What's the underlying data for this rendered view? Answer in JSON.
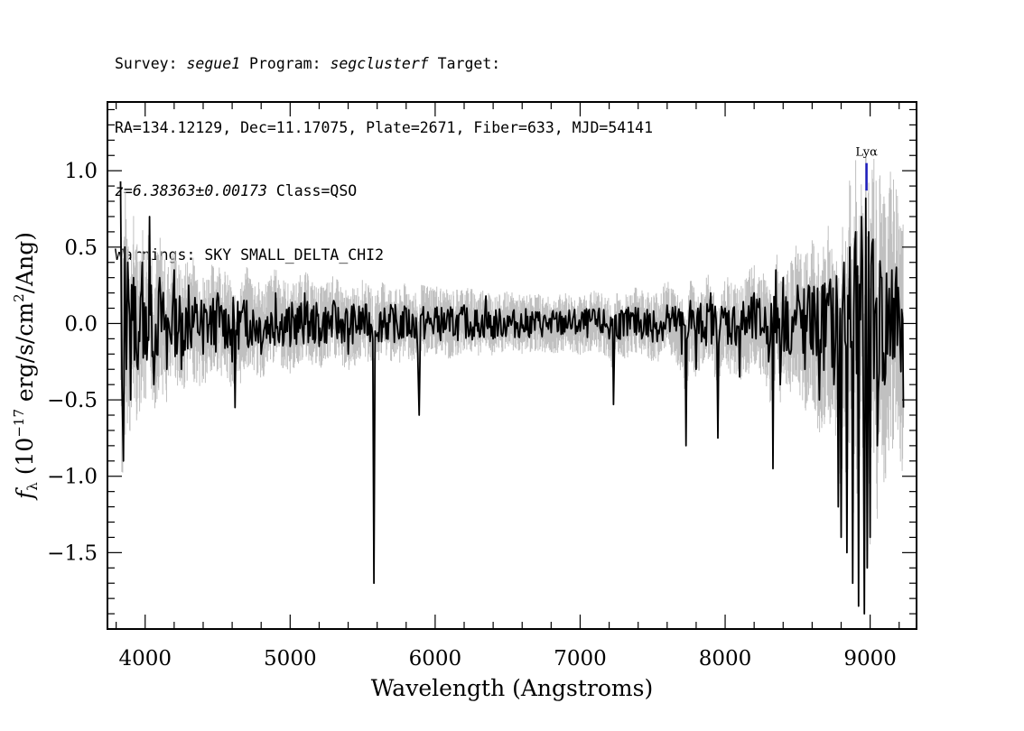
{
  "header": {
    "line1": {
      "survey_label": "Survey: ",
      "survey": "segue1",
      "program_label": " Program: ",
      "program": "segclusterf",
      "target_label": " Target:"
    },
    "line2": "RA=134.12129, Dec=11.17075, Plate=2671, Fiber=633, MJD=54141",
    "line3": {
      "redshift": "z=6.38363±0.00173",
      "class": " Class=QSO"
    },
    "line4": "Warnings: SKY SMALL_DELTA_CHI2"
  },
  "chart_data": {
    "type": "line",
    "title": "",
    "xlabel": "Wavelength (Angstroms)",
    "ylabel": "f_λ (10^-17 erg/s/cm^2/Ang)",
    "xlim": [
      3740,
      9320
    ],
    "ylim": [
      -2.0,
      1.45
    ],
    "x_ticks": [
      4000,
      5000,
      6000,
      7000,
      8000,
      9000
    ],
    "x_tick_labels": [
      "4000",
      "5000",
      "6000",
      "7000",
      "8000",
      "9000"
    ],
    "y_ticks": [
      1.0,
      0.5,
      0.0,
      -0.5,
      -1.0,
      -1.5
    ],
    "y_tick_labels": [
      "1.0",
      "0.5",
      "0.0",
      "−0.5",
      "−1.0",
      "−1.5"
    ],
    "grid": false,
    "colors": {
      "flux": "#000000",
      "error": "#c0c0c0",
      "line_marker": "#1f1fbf"
    },
    "spectral_lines": [
      {
        "name": "Lyα",
        "wavelength": 8975,
        "marker_top": 1.05,
        "marker_bottom": 0.87
      }
    ],
    "series": [
      {
        "role": "error",
        "x": [
          3830,
          3850,
          3870,
          3900,
          3950,
          4000,
          4100,
          4200,
          4300,
          4500,
          4700,
          5000,
          5300,
          5600,
          5900,
          6200,
          6500,
          6800,
          7100,
          7400,
          7700,
          8000,
          8200,
          8400,
          8600,
          8800,
          8900,
          9000,
          9100,
          9200,
          9230
        ],
        "values": [
          0.95,
          0.85,
          0.7,
          0.6,
          0.55,
          0.5,
          0.45,
          0.4,
          0.38,
          0.34,
          0.3,
          0.27,
          0.25,
          0.23,
          0.22,
          0.2,
          0.18,
          0.17,
          0.18,
          0.2,
          0.24,
          0.28,
          0.32,
          0.38,
          0.5,
          0.7,
          0.9,
          1.0,
          0.9,
          0.8,
          0.8
        ]
      },
      {
        "role": "flux",
        "x": [
          3830,
          3840,
          3850,
          3860,
          3870,
          3880,
          3900,
          3920,
          3950,
          3980,
          4000,
          4030,
          4060,
          4100,
          4150,
          4200,
          4250,
          4300,
          4400,
          4500,
          4600,
          4620,
          4700,
          4800,
          4900,
          5000,
          5100,
          5200,
          5300,
          5400,
          5500,
          5570,
          5578,
          5586,
          5650,
          5750,
          5800,
          5880,
          5890,
          5900,
          6000,
          6100,
          6200,
          6300,
          6350,
          6400,
          6500,
          6600,
          6700,
          6800,
          6900,
          7000,
          7100,
          7200,
          7230,
          7240,
          7300,
          7400,
          7500,
          7600,
          7700,
          7730,
          7760,
          7800,
          7900,
          7950,
          8000,
          8100,
          8200,
          8300,
          8330,
          8350,
          8380,
          8400,
          8450,
          8500,
          8550,
          8600,
          8650,
          8700,
          8750,
          8780,
          8800,
          8820,
          8840,
          8860,
          8880,
          8900,
          8920,
          8940,
          8960,
          8970,
          8980,
          8990,
          9000,
          9020,
          9050,
          9080,
          9100,
          9150,
          9200,
          9230
        ],
        "values": [
          0.93,
          -0.4,
          -0.9,
          0.5,
          -0.3,
          0.4,
          -0.5,
          0.3,
          -0.3,
          0.4,
          -0.2,
          0.7,
          -0.4,
          0.3,
          -0.3,
          0.35,
          -0.3,
          0.25,
          -0.2,
          0.2,
          -0.25,
          -0.55,
          0.15,
          -0.2,
          0.2,
          -0.15,
          0.2,
          -0.15,
          0.15,
          -0.2,
          0.1,
          -0.1,
          -1.7,
          -0.05,
          0.1,
          -0.1,
          0.1,
          -0.2,
          -0.6,
          0.05,
          0.1,
          -0.05,
          0.12,
          0.0,
          0.18,
          -0.1,
          0.05,
          -0.03,
          0.04,
          -0.06,
          0.05,
          -0.05,
          0.08,
          -0.1,
          -0.53,
          0.05,
          -0.08,
          0.1,
          -0.12,
          0.12,
          -0.2,
          -0.8,
          0.15,
          -0.3,
          0.2,
          -0.75,
          0.1,
          -0.35,
          0.2,
          -0.25,
          -0.95,
          0.35,
          -0.4,
          0.3,
          -0.2,
          0.25,
          -0.3,
          0.2,
          -0.5,
          0.15,
          -0.4,
          -1.2,
          -1.4,
          0.4,
          -1.5,
          0.5,
          -1.7,
          0.6,
          -1.85,
          0.7,
          -1.9,
          0.82,
          -1.6,
          0.6,
          -1.4,
          0.55,
          -0.8,
          0.3,
          -0.4,
          0.35,
          0.1,
          -0.55
        ]
      }
    ]
  }
}
